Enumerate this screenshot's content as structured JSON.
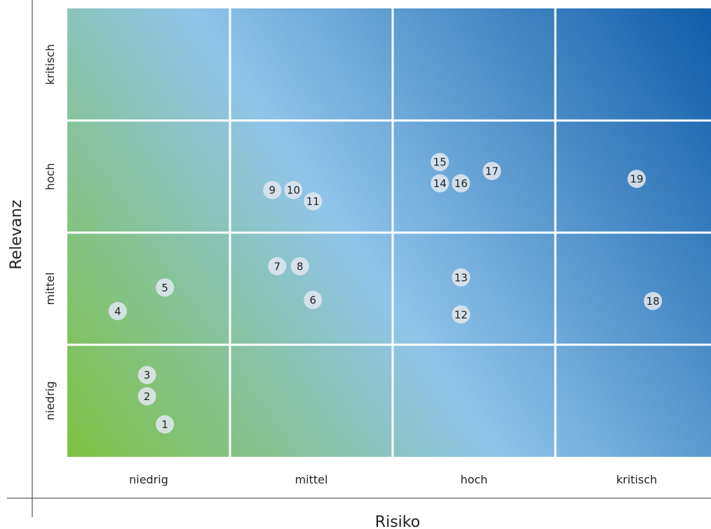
{
  "chart_data": {
    "type": "scatter",
    "title": "",
    "xlabel": "Risiko",
    "ylabel": "Relevanz",
    "x_categories": [
      "niedrig",
      "mittel",
      "hoch",
      "kritisch"
    ],
    "y_categories": [
      "niedrig",
      "mittel",
      "hoch",
      "kritisch"
    ],
    "xlim": [
      0,
      4
    ],
    "ylim": [
      0,
      4
    ],
    "grid": true,
    "legend": "none",
    "colors": {
      "low": "#7dc242",
      "mid": "#8fc4ea",
      "high": "#0f5ba7",
      "grid": "#ffffff",
      "point": "#dfe6ee"
    },
    "points": [
      {
        "label": "1",
        "x": 0.6,
        "y": 0.29
      },
      {
        "label": "2",
        "x": 0.49,
        "y": 0.54
      },
      {
        "label": "3",
        "x": 0.49,
        "y": 0.73
      },
      {
        "label": "4",
        "x": 0.31,
        "y": 1.3
      },
      {
        "label": "5",
        "x": 0.6,
        "y": 1.51
      },
      {
        "label": "6",
        "x": 1.51,
        "y": 1.4
      },
      {
        "label": "7",
        "x": 1.29,
        "y": 1.7
      },
      {
        "label": "8",
        "x": 1.43,
        "y": 1.7
      },
      {
        "label": "9",
        "x": 1.26,
        "y": 2.38
      },
      {
        "label": "10",
        "x": 1.39,
        "y": 2.38
      },
      {
        "label": "11",
        "x": 1.51,
        "y": 2.28
      },
      {
        "label": "12",
        "x": 2.42,
        "y": 1.27
      },
      {
        "label": "13",
        "x": 2.42,
        "y": 1.6
      },
      {
        "label": "14",
        "x": 2.29,
        "y": 2.44
      },
      {
        "label": "15",
        "x": 2.29,
        "y": 2.63
      },
      {
        "label": "16",
        "x": 2.42,
        "y": 2.44
      },
      {
        "label": "17",
        "x": 2.61,
        "y": 2.55
      },
      {
        "label": "18",
        "x": 3.6,
        "y": 1.39
      },
      {
        "label": "19",
        "x": 3.5,
        "y": 2.48
      }
    ]
  }
}
